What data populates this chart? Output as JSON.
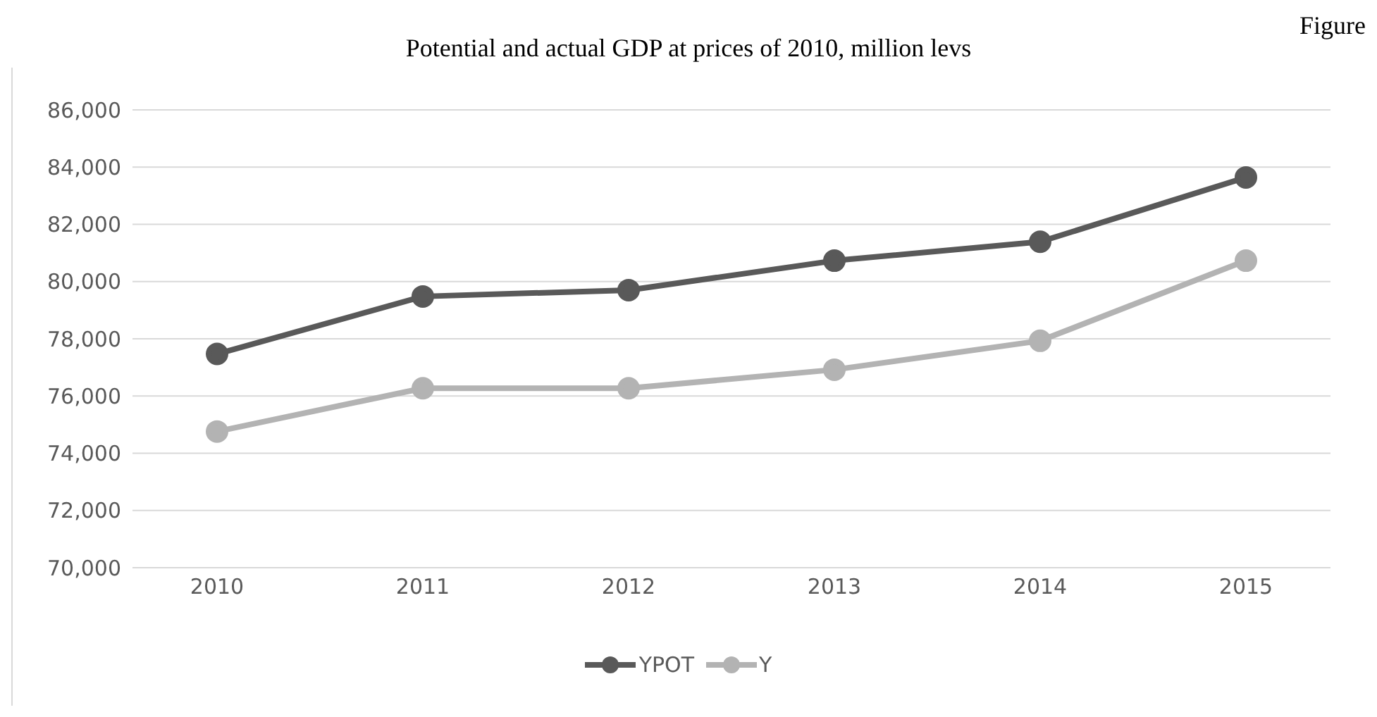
{
  "chart_data": {
    "type": "line",
    "title": "Potential and actual GDP at prices of 2010, million levs",
    "annotations": [
      "Figure"
    ],
    "categories": [
      "2010",
      "2011",
      "2012",
      "2013",
      "2014",
      "2015"
    ],
    "series": [
      {
        "name": "YPOT",
        "color": "#595959",
        "values": [
          77470,
          79480,
          79700,
          80730,
          81390,
          83640
        ]
      },
      {
        "name": "Y",
        "color": "#b3b3b3",
        "values": [
          74760,
          76270,
          76270,
          76920,
          77930,
          80730
        ]
      }
    ],
    "ylim": [
      70000,
      86000
    ],
    "yticks": [
      {
        "value": 70000,
        "label": "70,000"
      },
      {
        "value": 72000,
        "label": "72,000"
      },
      {
        "value": 74000,
        "label": "74,000"
      },
      {
        "value": 76000,
        "label": "76,000"
      },
      {
        "value": 78000,
        "label": "78,000"
      },
      {
        "value": 80000,
        "label": "80,000"
      },
      {
        "value": 82000,
        "label": "82,000"
      },
      {
        "value": 84000,
        "label": "84,000"
      },
      {
        "value": 86000,
        "label": "86,000"
      }
    ],
    "grid": "y",
    "legend": "bottom",
    "marker": "circle",
    "line_style": "solid"
  }
}
